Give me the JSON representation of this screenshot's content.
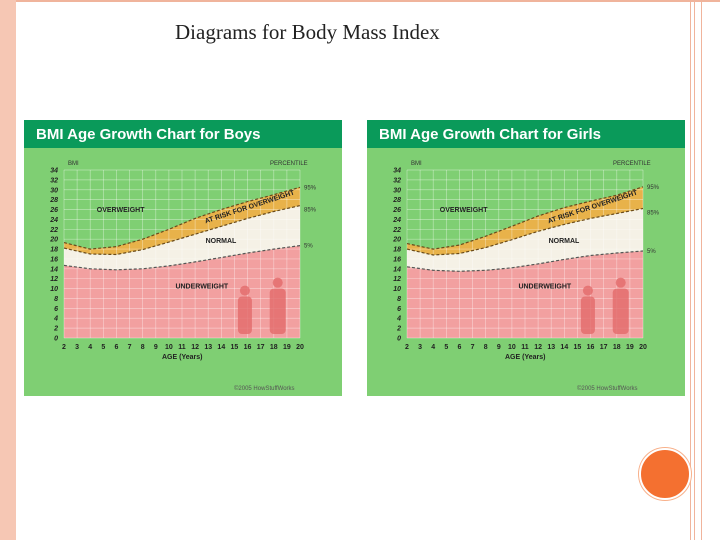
{
  "slide": {
    "title": "Diagrams for Body Mass Index"
  },
  "colors": {
    "frame": "#f6c7b4",
    "panel_bg": "#7fcf73",
    "header_bg": "#0a9a5a",
    "underweight": "#f2a0a0",
    "normal": "#f5f1e6",
    "at_risk": "#e8b24a",
    "accent_circle": "#f47030"
  },
  "chart_data": [
    {
      "type": "area",
      "title": "BMI Age Growth Chart for Boys",
      "y_axis_title": "BMI",
      "percentile_title": "PERCENTILE",
      "xlabel": "AGE (Years)",
      "x_ticks": [
        "2",
        "3",
        "4",
        "5",
        "6",
        "7",
        "8",
        "9",
        "10",
        "11",
        "12",
        "13",
        "14",
        "15",
        "16",
        "17",
        "18",
        "19",
        "20"
      ],
      "y_ticks": [
        "0",
        "2",
        "4",
        "6",
        "8",
        "10",
        "12",
        "14",
        "16",
        "18",
        "20",
        "22",
        "24",
        "26",
        "28",
        "30",
        "32",
        "34"
      ],
      "xlim": [
        2,
        20
      ],
      "ylim": [
        0,
        34
      ],
      "x": [
        2,
        4,
        6,
        8,
        10,
        12,
        14,
        16,
        18,
        20
      ],
      "series": [
        {
          "name": "5%",
          "values": [
            14.7,
            14.0,
            13.8,
            14.0,
            14.6,
            15.4,
            16.3,
            17.2,
            18.0,
            18.7
          ]
        },
        {
          "name": "85%",
          "values": [
            18.2,
            17.0,
            16.9,
            17.9,
            19.4,
            21.0,
            22.6,
            24.2,
            25.6,
            26.8
          ]
        },
        {
          "name": "95%",
          "values": [
            19.3,
            18.0,
            18.5,
            20.0,
            22.0,
            24.2,
            26.0,
            27.6,
            29.0,
            30.5
          ]
        }
      ],
      "region_labels": [
        "OVERWEIGHT",
        "AT RISK FOR OVERWEIGHT",
        "NORMAL",
        "UNDERWEIGHT"
      ],
      "credit": "©2005 HowStuffWorks"
    },
    {
      "type": "area",
      "title": "BMI Age Growth Chart for Girls",
      "y_axis_title": "BMI",
      "percentile_title": "PERCENTILE",
      "xlabel": "AGE (Years)",
      "x_ticks": [
        "2",
        "3",
        "4",
        "5",
        "6",
        "7",
        "8",
        "9",
        "10",
        "11",
        "12",
        "13",
        "14",
        "15",
        "16",
        "17",
        "18",
        "19",
        "20"
      ],
      "y_ticks": [
        "0",
        "2",
        "4",
        "6",
        "8",
        "10",
        "12",
        "14",
        "16",
        "18",
        "20",
        "22",
        "24",
        "26",
        "28",
        "30",
        "32",
        "34"
      ],
      "xlim": [
        2,
        20
      ],
      "ylim": [
        0,
        34
      ],
      "x": [
        2,
        4,
        6,
        8,
        10,
        12,
        14,
        16,
        18,
        20
      ],
      "series": [
        {
          "name": "5%",
          "values": [
            14.4,
            13.7,
            13.5,
            13.7,
            14.2,
            15.0,
            15.9,
            16.7,
            17.2,
            17.6
          ]
        },
        {
          "name": "85%",
          "values": [
            18.0,
            16.8,
            17.1,
            18.3,
            19.9,
            21.6,
            23.0,
            24.2,
            25.2,
            26.2
          ]
        },
        {
          "name": "95%",
          "values": [
            19.1,
            18.0,
            18.8,
            20.6,
            22.6,
            24.7,
            26.4,
            27.7,
            28.9,
            30.6
          ]
        }
      ],
      "region_labels": [
        "OVERWEIGHT",
        "AT RISK FOR OVERWEIGHT",
        "NORMAL",
        "UNDERWEIGHT"
      ],
      "credit": "©2005 HowStuffWorks"
    }
  ]
}
